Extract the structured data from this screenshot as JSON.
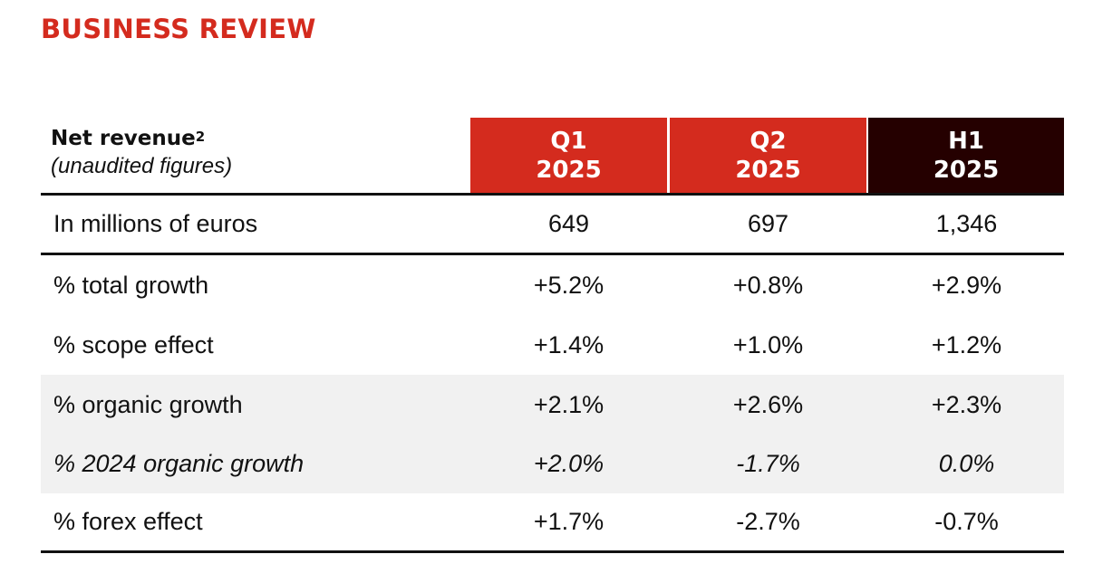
{
  "title": "BUSINESS REVIEW",
  "colors": {
    "accent_red": "#d42b1e",
    "dark_header": "#250000",
    "band_gray": "#f1f1f1"
  },
  "table": {
    "header": {
      "label": "Net revenue",
      "footnote": "2",
      "sublabel": "(unaudited figures)",
      "columns": [
        {
          "period": "Q1",
          "year": "2025"
        },
        {
          "period": "Q2",
          "year": "2025"
        },
        {
          "period": "H1",
          "year": "2025"
        }
      ]
    },
    "rows": [
      {
        "label": "In millions of euros",
        "values": [
          "649",
          "697",
          "1,346"
        ]
      },
      {
        "label": "% total growth",
        "values": [
          "+5.2%",
          "+0.8%",
          "+2.9%"
        ]
      },
      {
        "label": "% scope effect",
        "values": [
          "+1.4%",
          "+1.0%",
          "+1.2%"
        ]
      },
      {
        "label": "% organic growth",
        "values": [
          "+2.1%",
          "+2.6%",
          "+2.3%"
        ]
      },
      {
        "label": "% 2024 organic growth",
        "values": [
          "+2.0%",
          "-1.7%",
          "0.0%"
        ]
      },
      {
        "label": "% forex effect",
        "values": [
          "+1.7%",
          "-2.7%",
          "-0.7%"
        ]
      }
    ]
  }
}
